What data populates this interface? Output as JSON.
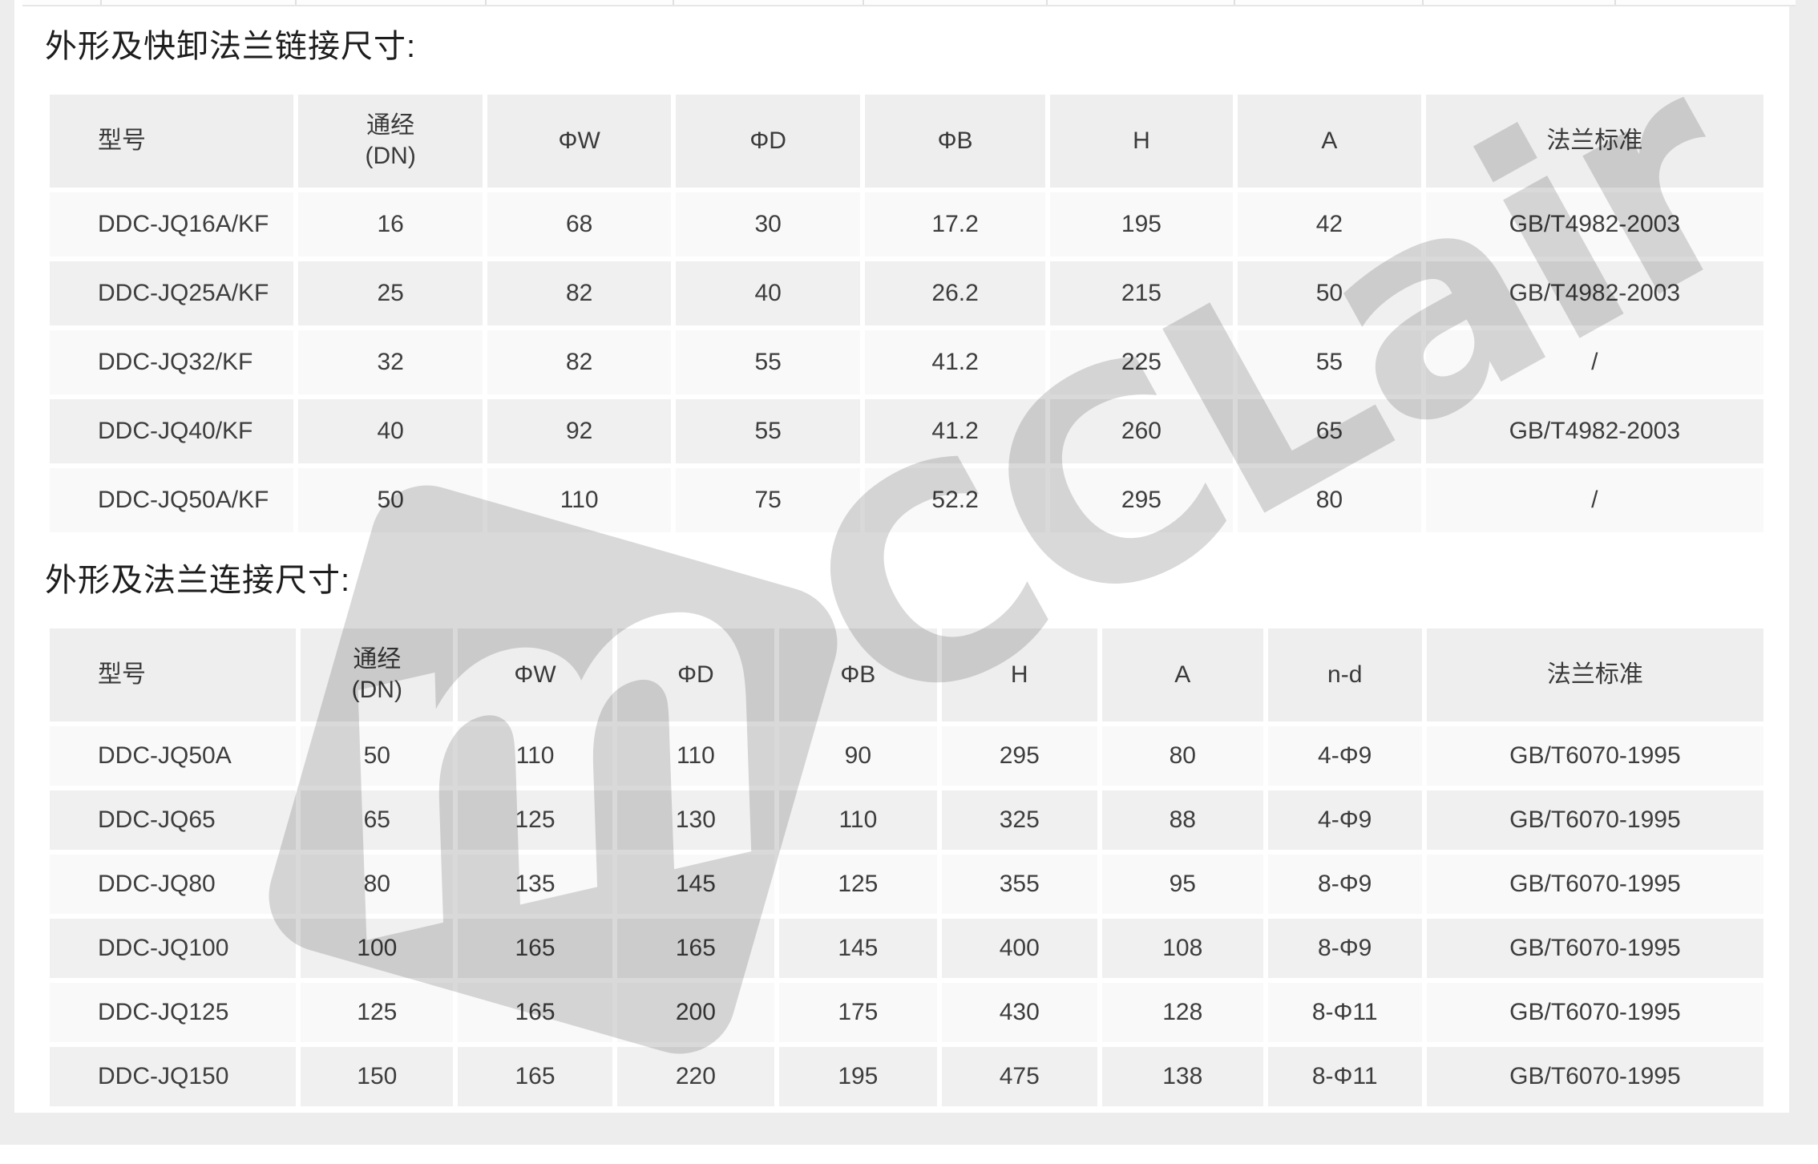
{
  "titles": {
    "section1": "外形及快卸法兰链接尺寸:",
    "section2": "外形及法兰连接尺寸:"
  },
  "watermark": {
    "text": "CCLair",
    "logo_letter": "m",
    "color": "rgba(0,0,0,0.15)"
  },
  "colors": {
    "page_bg": "#ededed",
    "card_bg": "#ffffff",
    "header_cell_bg": "#eeeeee",
    "row_light_bg": "#f9f9f9",
    "row_dark_bg": "#f0f0f0",
    "title_text": "#1d1d1d",
    "cell_text": "#3d3d3d"
  },
  "tables": {
    "section1": {
      "headers": [
        "型号",
        "通经\n(DN)",
        "ΦW",
        "ΦD",
        "ΦB",
        "H",
        "A",
        "法兰标准"
      ],
      "rows": [
        [
          "DDC-JQ16A/KF",
          "16",
          "68",
          "30",
          "17.2",
          "195",
          "42",
          "GB/T4982-2003"
        ],
        [
          "DDC-JQ25A/KF",
          "25",
          "82",
          "40",
          "26.2",
          "215",
          "50",
          "GB/T4982-2003"
        ],
        [
          "DDC-JQ32/KF",
          "32",
          "82",
          "55",
          "41.2",
          "225",
          "55",
          "/"
        ],
        [
          "DDC-JQ40/KF",
          "40",
          "92",
          "55",
          "41.2",
          "260",
          "65",
          "GB/T4982-2003"
        ],
        [
          "DDC-JQ50A/KF",
          "50",
          "110",
          "75",
          "52.2",
          "295",
          "80",
          "/"
        ]
      ]
    },
    "section2": {
      "headers": [
        "型号",
        "通经\n(DN)",
        "ΦW",
        "ΦD",
        "ΦB",
        "H",
        "A",
        "n-d",
        "法兰标准"
      ],
      "rows": [
        [
          "DDC-JQ50A",
          "50",
          "110",
          "110",
          "90",
          "295",
          "80",
          "4-Φ9",
          "GB/T6070-1995"
        ],
        [
          "DDC-JQ65",
          "65",
          "125",
          "130",
          "110",
          "325",
          "88",
          "4-Φ9",
          "GB/T6070-1995"
        ],
        [
          "DDC-JQ80",
          "80",
          "135",
          "145",
          "125",
          "355",
          "95",
          "8-Φ9",
          "GB/T6070-1995"
        ],
        [
          "DDC-JQ100",
          "100",
          "165",
          "165",
          "145",
          "400",
          "108",
          "8-Φ9",
          "GB/T6070-1995"
        ],
        [
          "DDC-JQ125",
          "125",
          "165",
          "200",
          "175",
          "430",
          "128",
          "8-Φ11",
          "GB/T6070-1995"
        ],
        [
          "DDC-JQ150",
          "150",
          "165",
          "220",
          "195",
          "475",
          "138",
          "8-Φ11",
          "GB/T6070-1995"
        ]
      ]
    }
  }
}
